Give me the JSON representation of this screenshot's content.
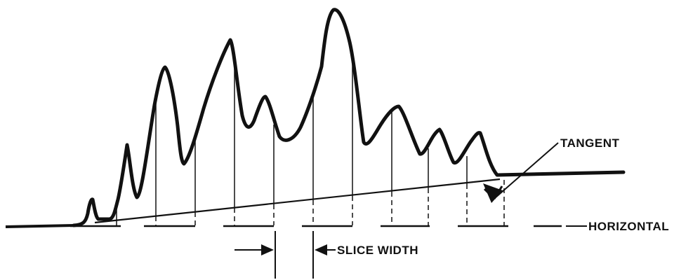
{
  "diagram": {
    "labels": {
      "tangent": "TANGENT",
      "horizontal": "HORIZONTAL",
      "slice_width": "SLICE WIDTH"
    }
  }
}
